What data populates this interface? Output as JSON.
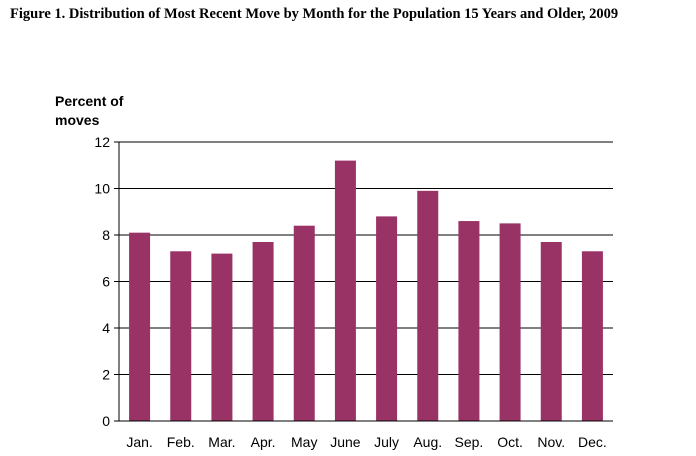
{
  "page": {
    "title": "Figure 1. Distribution of Most Recent Move by Month for the Population 15 Years and Older, 2009"
  },
  "chart_data": {
    "type": "bar",
    "title": "Figure 1. Distribution of Most Recent Move by Month for the Population 15 Years and Older, 2009",
    "xlabel": "",
    "ylabel_lines": [
      "Percent of",
      "moves"
    ],
    "categories": [
      "Jan.",
      "Feb.",
      "Mar.",
      "Apr.",
      "May",
      "June",
      "July",
      "Aug.",
      "Sep.",
      "Oct.",
      "Nov.",
      "Dec."
    ],
    "values": [
      8.1,
      7.3,
      7.2,
      7.7,
      8.4,
      11.2,
      8.8,
      9.9,
      8.6,
      8.5,
      7.7,
      7.3
    ],
    "ylim": [
      0,
      12
    ],
    "yticks": [
      0,
      2,
      4,
      6,
      8,
      10,
      12
    ],
    "grid": true,
    "legend": "none",
    "colors": {
      "bar": "#993366",
      "grid": "#000000",
      "axis": "#000000"
    }
  }
}
